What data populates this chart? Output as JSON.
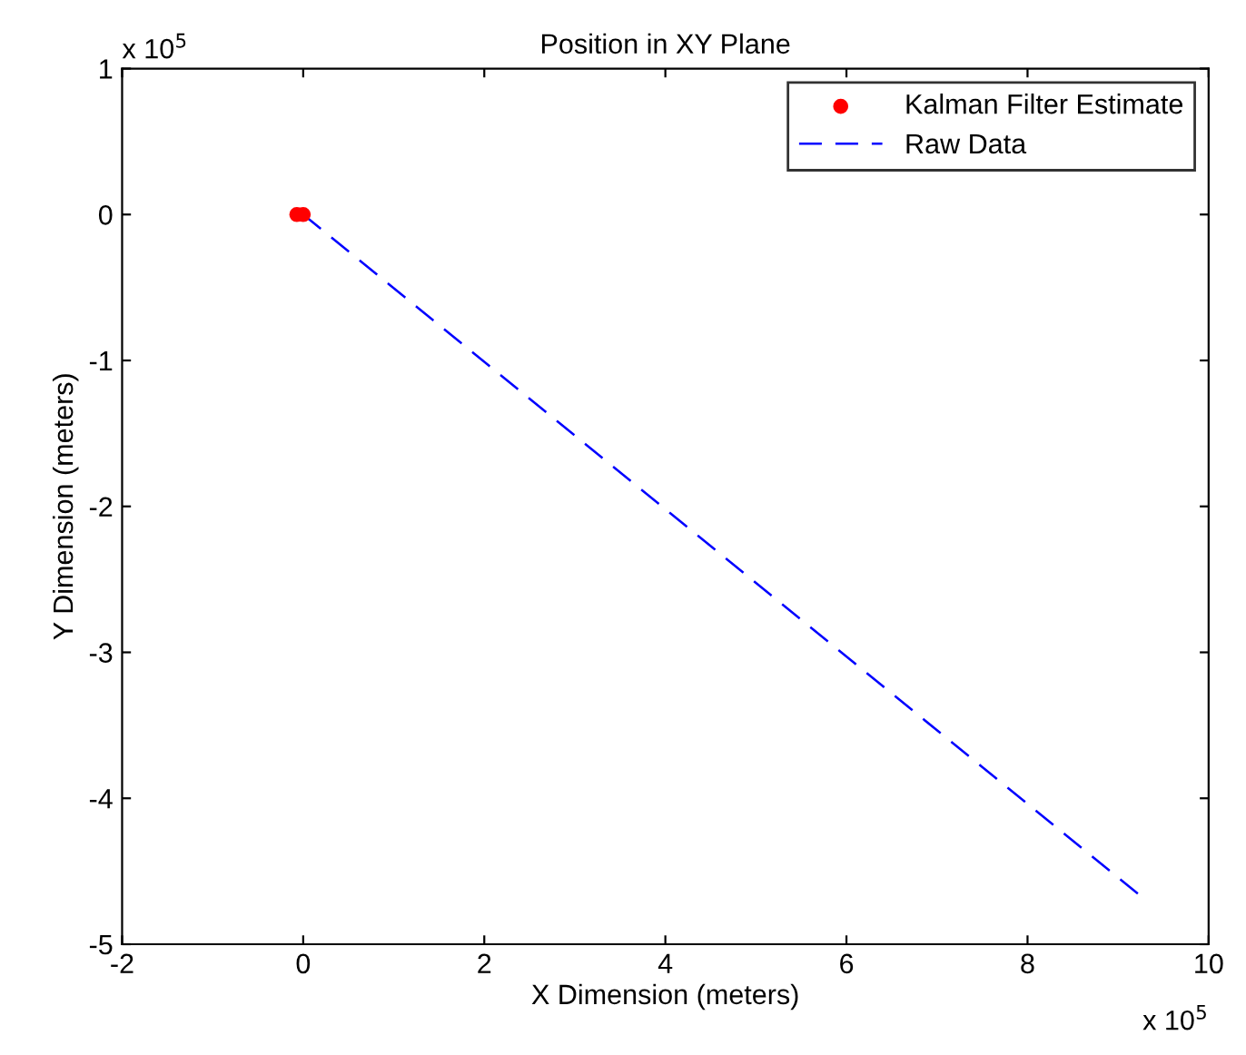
{
  "chart_data": {
    "type": "line",
    "title": "Position in XY Plane",
    "xlabel": "X Dimension (meters)",
    "ylabel": "Y Dimension (meters)",
    "xlim": [
      -2,
      10
    ],
    "xticks": [
      -2,
      0,
      2,
      4,
      6,
      8,
      10
    ],
    "ylim": [
      -5,
      1
    ],
    "yticks": [
      -5,
      -4,
      -3,
      -2,
      -1,
      0,
      1
    ],
    "annotations": [
      "x 10$^{5}$",
      "x 10$^{5}$"
    ],
    "legend": "top right",
    "grid": false,
    "series": [
      {
        "name": "Kalman Filter Estimate",
        "type": "scatter",
        "color": "#ff0000",
        "marker": "circle",
        "x": [
          -0.07,
          0.0
        ],
        "values": [
          0.0,
          0.0
        ]
      },
      {
        "name": "Raw Data",
        "color": "#0000ff",
        "line_style": "dashed",
        "x": [
          0.0,
          9.27
        ],
        "values": [
          0.0,
          -4.68
        ]
      }
    ]
  }
}
